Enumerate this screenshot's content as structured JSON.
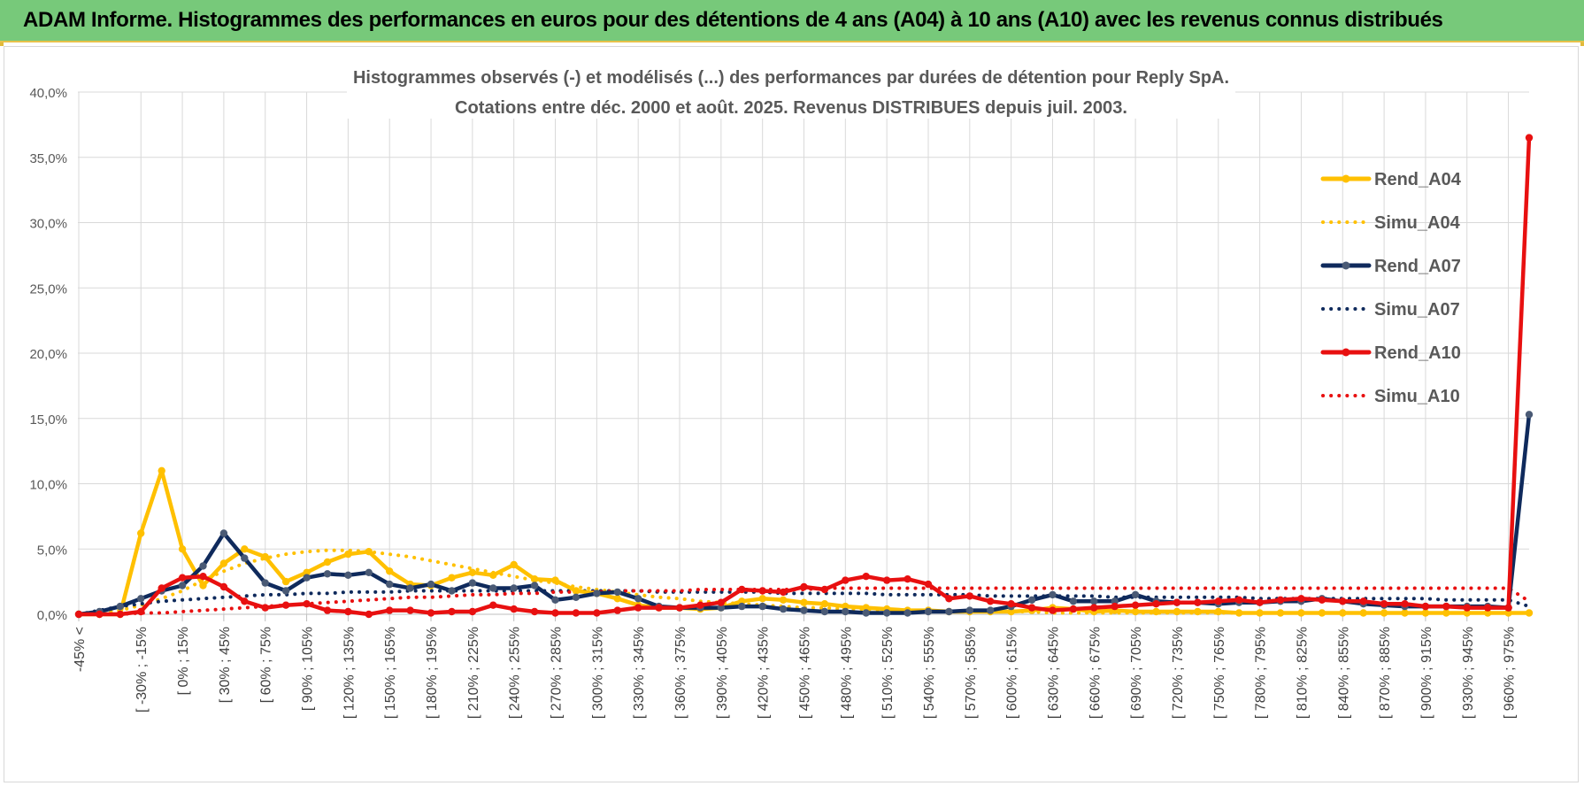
{
  "header": {
    "title": "ADAM Informe. Histogrammes des performances en euros pour des détentions de 4 ans (A04) à 10 ans (A10) avec les revenus connus distribués"
  },
  "chart_data": {
    "type": "line",
    "title_line1": "Histogrammes observés (-) et modélisés (...) des performances par durées de détention pour Reply SpA.",
    "title_line2": "Cotations entre déc. 2000 et août. 2025. Revenus DISTRIBUES depuis juil. 2003.",
    "ylim": [
      0,
      40
    ],
    "y_ticks": [
      "0,0%",
      "5,0%",
      "10,0%",
      "15,0%",
      "20,0%",
      "25,0%",
      "30,0%",
      "35,0%",
      "40,0%"
    ],
    "grid": true,
    "legend_position": "right",
    "x_tick_labels": [
      "-45% <",
      "[ -30% ; -15%",
      "[ 0% ; 15%",
      "[ 30% ; 45%",
      "[ 60% ; 75%",
      "[ 90% ; 105%",
      "[ 120% ; 135%",
      "[ 150% ; 165%",
      "[ 180% ; 195%",
      "[ 210% ; 225%",
      "[ 240% ; 255%",
      "[ 270% ; 285%",
      "[ 300% ; 315%",
      "[ 330% ; 345%",
      "[ 360% ; 375%",
      "[ 390% ; 405%",
      "[ 420% ; 435%",
      "[ 450% ; 465%",
      "[ 480% ; 495%",
      "[ 510% ; 525%",
      "[ 540% ; 555%",
      "[ 570% ; 585%",
      "[ 600% ; 615%",
      "[ 630% ; 645%",
      "[ 660% ; 675%",
      "[ 690% ; 705%",
      "[ 720% ; 735%",
      "[ 750% ; 765%",
      "[ 780% ; 795%",
      "[ 810% ; 825%",
      "[ 840% ; 855%",
      "[ 870% ; 885%",
      "[ 900% ; 915%",
      "[ 930% ; 945%",
      "[ 960% ; 975%"
    ],
    "series": [
      {
        "name": "Rend_A04",
        "style": "solid",
        "markers": true,
        "color": "#ffc000",
        "values": [
          0,
          0,
          0,
          6.2,
          11,
          5,
          2.2,
          3.9,
          5,
          4.4,
          2.5,
          3.2,
          4,
          4.6,
          4.8,
          3.3,
          2.3,
          2.2,
          2.8,
          3.2,
          3,
          3.8,
          2.7,
          2.6,
          1.8,
          1.6,
          1.2,
          0.7,
          0.5,
          0.5,
          0.4,
          0.5,
          1,
          1.2,
          1.1,
          0.9,
          0.8,
          0.6,
          0.5,
          0.4,
          0.3,
          0.3,
          0.2,
          0.2,
          0.2,
          0.2,
          0.3,
          0.5,
          0.4,
          0.2,
          0.3,
          0.2,
          0.2,
          0.2,
          0.2,
          0.2,
          0.1,
          0.1,
          0.1,
          0.1,
          0.1,
          0.1,
          0.1,
          0.1,
          0.1,
          0.1,
          0.1,
          0.1,
          0.1,
          0.1,
          0.1
        ]
      },
      {
        "name": "Simu_A04",
        "style": "dotted",
        "markers": false,
        "color": "#ffc000",
        "values": [
          0,
          0.1,
          0.3,
          0.7,
          1.2,
          1.8,
          2.6,
          3.3,
          3.9,
          4.3,
          4.6,
          4.8,
          4.9,
          4.9,
          4.8,
          4.6,
          4.4,
          4.1,
          3.8,
          3.5,
          3.2,
          2.9,
          2.6,
          2.4,
          2.1,
          1.9,
          1.7,
          1.5,
          1.3,
          1.2,
          1,
          0.9,
          0.8,
          0.7,
          0.6,
          0.5,
          0.5,
          0.4,
          0.4,
          0.3,
          0.3,
          0.3,
          0.2,
          0.2,
          0.2,
          0.2,
          0.2,
          0.1,
          0.1,
          0.1,
          0.1,
          0.1,
          0.1,
          0.1,
          0.1,
          0.1,
          0.1,
          0.1,
          0.1,
          0.1,
          0.1,
          0.1,
          0.1,
          0.1,
          0.1,
          0.1,
          0.1,
          0.1,
          0.1,
          0.1,
          0.1
        ]
      },
      {
        "name": "Rend_A07",
        "style": "solid",
        "markers": true,
        "color": "#0f2a5c",
        "values": [
          0,
          0.2,
          0.6,
          1.2,
          1.8,
          2.2,
          3.7,
          6.2,
          4.3,
          2.4,
          1.8,
          2.8,
          3.1,
          3,
          3.2,
          2.3,
          2,
          2.3,
          1.8,
          2.4,
          2,
          2,
          2.2,
          1.1,
          1.3,
          1.6,
          1.7,
          1.2,
          0.6,
          0.5,
          0.5,
          0.5,
          0.6,
          0.6,
          0.4,
          0.3,
          0.2,
          0.2,
          0.1,
          0.1,
          0.1,
          0.2,
          0.2,
          0.3,
          0.3,
          0.6,
          1.1,
          1.5,
          1,
          1,
          1,
          1.5,
          1,
          0.9,
          0.9,
          0.8,
          0.9,
          0.9,
          1,
          1,
          1.2,
          1,
          0.8,
          0.7,
          0.6,
          0.6,
          0.6,
          0.6,
          0.6,
          0.5,
          15.3
        ]
      },
      {
        "name": "Simu_A07",
        "style": "dotted",
        "markers": false,
        "color": "#0f2a5c",
        "values": [
          0,
          0.3,
          0.6,
          0.8,
          1,
          1.1,
          1.2,
          1.3,
          1.4,
          1.5,
          1.5,
          1.6,
          1.6,
          1.7,
          1.7,
          1.7,
          1.8,
          1.8,
          1.8,
          1.8,
          1.8,
          1.8,
          1.8,
          1.8,
          1.8,
          1.8,
          1.8,
          1.8,
          1.7,
          1.7,
          1.7,
          1.7,
          1.7,
          1.7,
          1.6,
          1.6,
          1.6,
          1.6,
          1.6,
          1.5,
          1.5,
          1.5,
          1.5,
          1.5,
          1.4,
          1.4,
          1.4,
          1.4,
          1.4,
          1.4,
          1.3,
          1.3,
          1.3,
          1.3,
          1.3,
          1.3,
          1.3,
          1.2,
          1.2,
          1.2,
          1.2,
          1.2,
          1.2,
          1.2,
          1.2,
          1.2,
          1.1,
          1.1,
          1.1,
          1.1,
          0.6
        ]
      },
      {
        "name": "Rend_A10",
        "style": "solid",
        "markers": true,
        "color": "#e81010",
        "values": [
          0,
          0,
          0,
          0.2,
          2,
          2.8,
          2.9,
          2.1,
          1,
          0.5,
          0.7,
          0.8,
          0.3,
          0.2,
          0,
          0.3,
          0.3,
          0.1,
          0.2,
          0.2,
          0.7,
          0.4,
          0.2,
          0.1,
          0.1,
          0.1,
          0.3,
          0.5,
          0.5,
          0.5,
          0.7,
          0.9,
          1.9,
          1.8,
          1.7,
          2.1,
          1.9,
          2.6,
          2.9,
          2.6,
          2.7,
          2.3,
          1.2,
          1.4,
          1,
          0.8,
          0.5,
          0.3,
          0.4,
          0.5,
          0.6,
          0.7,
          0.8,
          0.9,
          0.9,
          1,
          1.1,
          0.9,
          1.1,
          1.2,
          1.1,
          1,
          1,
          0.8,
          0.8,
          0.6,
          0.6,
          0.5,
          0.5,
          0.5,
          36.5
        ]
      },
      {
        "name": "Simu_A10",
        "style": "dotted",
        "markers": false,
        "color": "#e81010",
        "values": [
          0,
          0,
          0,
          0.1,
          0.1,
          0.2,
          0.3,
          0.4,
          0.5,
          0.6,
          0.7,
          0.8,
          0.9,
          1,
          1.1,
          1.2,
          1.3,
          1.3,
          1.4,
          1.5,
          1.5,
          1.6,
          1.6,
          1.7,
          1.7,
          1.7,
          1.8,
          1.8,
          1.8,
          1.8,
          1.9,
          1.9,
          1.9,
          1.9,
          1.9,
          1.9,
          2,
          2,
          2,
          2,
          2,
          2,
          2,
          2,
          2,
          2,
          2,
          2,
          2,
          2,
          2,
          2,
          2,
          2,
          2,
          2,
          2,
          2,
          2,
          2,
          2,
          2,
          2,
          2,
          2,
          2,
          2,
          2,
          2,
          2,
          1
        ]
      }
    ]
  }
}
